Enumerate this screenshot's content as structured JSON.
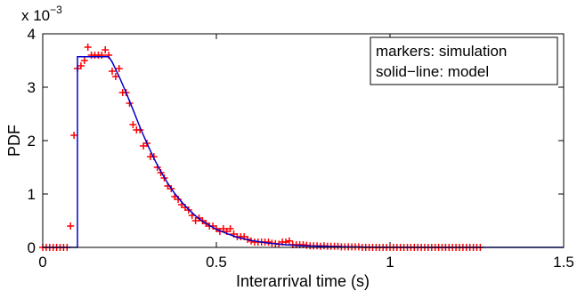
{
  "chart_data": {
    "type": "line",
    "title": "",
    "xlabel": "Interarrival time (s)",
    "ylabel": "PDF",
    "xlim": [
      0,
      1.5
    ],
    "ylim": [
      0,
      0.004
    ],
    "y_exponent_label": "x 10",
    "y_exponent_power": "−3",
    "x_ticks": [
      {
        "value": 0,
        "label": "0"
      },
      {
        "value": 0.5,
        "label": "0.5"
      },
      {
        "value": 1,
        "label": "1"
      },
      {
        "value": 1.5,
        "label": "1.5"
      }
    ],
    "y_ticks": [
      {
        "value": 0,
        "label": "0"
      },
      {
        "value": 0.001,
        "label": "1"
      },
      {
        "value": 0.002,
        "label": "2"
      },
      {
        "value": 0.003,
        "label": "3"
      },
      {
        "value": 0.004,
        "label": "4"
      }
    ],
    "legend": {
      "position": "top-right",
      "entries": [
        "markers:  simulation",
        "solid−line: model"
      ]
    },
    "colors": {
      "simulation": "#ff0000",
      "model": "#0000cc"
    },
    "series": [
      {
        "marker": "plus",
        "x": [
          0.0,
          0.01,
          0.02,
          0.03,
          0.04,
          0.05,
          0.06,
          0.07,
          0.08,
          0.09,
          0.1,
          0.11,
          0.12,
          0.13,
          0.14,
          0.15,
          0.16,
          0.17,
          0.18,
          0.19,
          0.2,
          0.21,
          0.22,
          0.23,
          0.24,
          0.25,
          0.26,
          0.27,
          0.28,
          0.29,
          0.3,
          0.31,
          0.32,
          0.33,
          0.34,
          0.35,
          0.36,
          0.37,
          0.38,
          0.39,
          0.4,
          0.41,
          0.42,
          0.43,
          0.44,
          0.45,
          0.46,
          0.47,
          0.48,
          0.49,
          0.5,
          0.51,
          0.52,
          0.53,
          0.54,
          0.55,
          0.56,
          0.57,
          0.58,
          0.59,
          0.6,
          0.61,
          0.62,
          0.63,
          0.64,
          0.65,
          0.66,
          0.67,
          0.68,
          0.69,
          0.7,
          0.71,
          0.72,
          0.73,
          0.74,
          0.75,
          0.76,
          0.77,
          0.78,
          0.79,
          0.8,
          0.81,
          0.82,
          0.83,
          0.84,
          0.85,
          0.86,
          0.87,
          0.88,
          0.89,
          0.9,
          0.91,
          0.92,
          0.93,
          0.94,
          0.95,
          0.96,
          0.97,
          0.98,
          0.99,
          1.0,
          1.01,
          1.02,
          1.03,
          1.04,
          1.05,
          1.06,
          1.07,
          1.08,
          1.09,
          1.1,
          1.11,
          1.12,
          1.13,
          1.14,
          1.15,
          1.16,
          1.17,
          1.18,
          1.19,
          1.2,
          1.21,
          1.22,
          1.23,
          1.24,
          1.25,
          1.26
        ],
        "y": [
          0.0,
          0.0,
          0.0,
          0.0,
          0.0,
          0.0,
          0.0,
          0.0,
          0.0004,
          0.0021,
          0.00335,
          0.0034,
          0.0035,
          0.00375,
          0.0036,
          0.0036,
          0.0036,
          0.0036,
          0.0037,
          0.0036,
          0.0033,
          0.0032,
          0.00335,
          0.0029,
          0.0029,
          0.0027,
          0.0023,
          0.0022,
          0.0022,
          0.0019,
          0.00195,
          0.0017,
          0.0017,
          0.0015,
          0.0014,
          0.0013,
          0.00115,
          0.0011,
          0.00095,
          0.0009,
          0.0008,
          0.00075,
          0.0007,
          0.0006,
          0.0005,
          0.00055,
          0.0005,
          0.00045,
          0.0004,
          0.0004,
          0.00035,
          0.0003,
          0.00035,
          0.0003,
          0.00035,
          0.00025,
          0.0002,
          0.0002,
          0.0002,
          0.00015,
          0.00012,
          0.0001,
          0.0001,
          0.0001,
          0.0001,
          0.0001,
          8e-05,
          7e-05,
          6e-05,
          0.0001,
          0.0001,
          0.00012,
          5e-05,
          5e-05,
          5e-05,
          5e-05,
          4e-05,
          3e-05,
          3e-05,
          3e-05,
          2e-05,
          3e-05,
          2e-05,
          2e-05,
          2e-05,
          2e-05,
          1e-05,
          1e-05,
          1e-05,
          1e-05,
          1e-05,
          1e-05,
          0.0,
          0.0,
          0.0,
          0.0,
          0.0,
          0.0,
          0.0,
          0.0,
          0.0,
          0.0,
          0.0,
          0.0,
          0.0,
          0.0,
          0.0,
          0.0,
          0.0,
          0.0,
          0.0,
          0.0,
          0.0,
          0.0,
          0.0,
          0.0,
          0.0,
          0.0,
          0.0,
          0.0,
          0.0,
          0.0,
          0.0,
          0.0,
          0.0,
          0.0,
          0.0
        ]
      },
      {
        "marker": "none",
        "x": [
          0.0,
          0.1,
          0.1,
          0.19,
          0.2,
          0.22,
          0.24,
          0.26,
          0.28,
          0.3,
          0.32,
          0.34,
          0.36,
          0.38,
          0.4,
          0.42,
          0.44,
          0.46,
          0.48,
          0.5,
          0.53,
          0.56,
          0.6,
          0.65,
          0.7,
          0.75,
          0.8,
          0.85,
          0.9,
          0.95,
          1.0,
          1.1,
          1.2,
          1.3,
          1.4,
          1.5
        ],
        "y": [
          0.0,
          0.0,
          0.00357,
          0.00357,
          0.00347,
          0.0032,
          0.0029,
          0.00258,
          0.00225,
          0.00195,
          0.00167,
          0.00142,
          0.0012,
          0.00101,
          0.00085,
          0.00071,
          0.00059,
          0.00049,
          0.00041,
          0.00034,
          0.00026,
          0.00019,
          0.00013,
          8e-05,
          5e-05,
          3e-05,
          2e-05,
          1.2e-05,
          7e-06,
          4e-06,
          2e-06,
          1e-06,
          0.0,
          0.0,
          0.0,
          0.0
        ]
      }
    ]
  }
}
